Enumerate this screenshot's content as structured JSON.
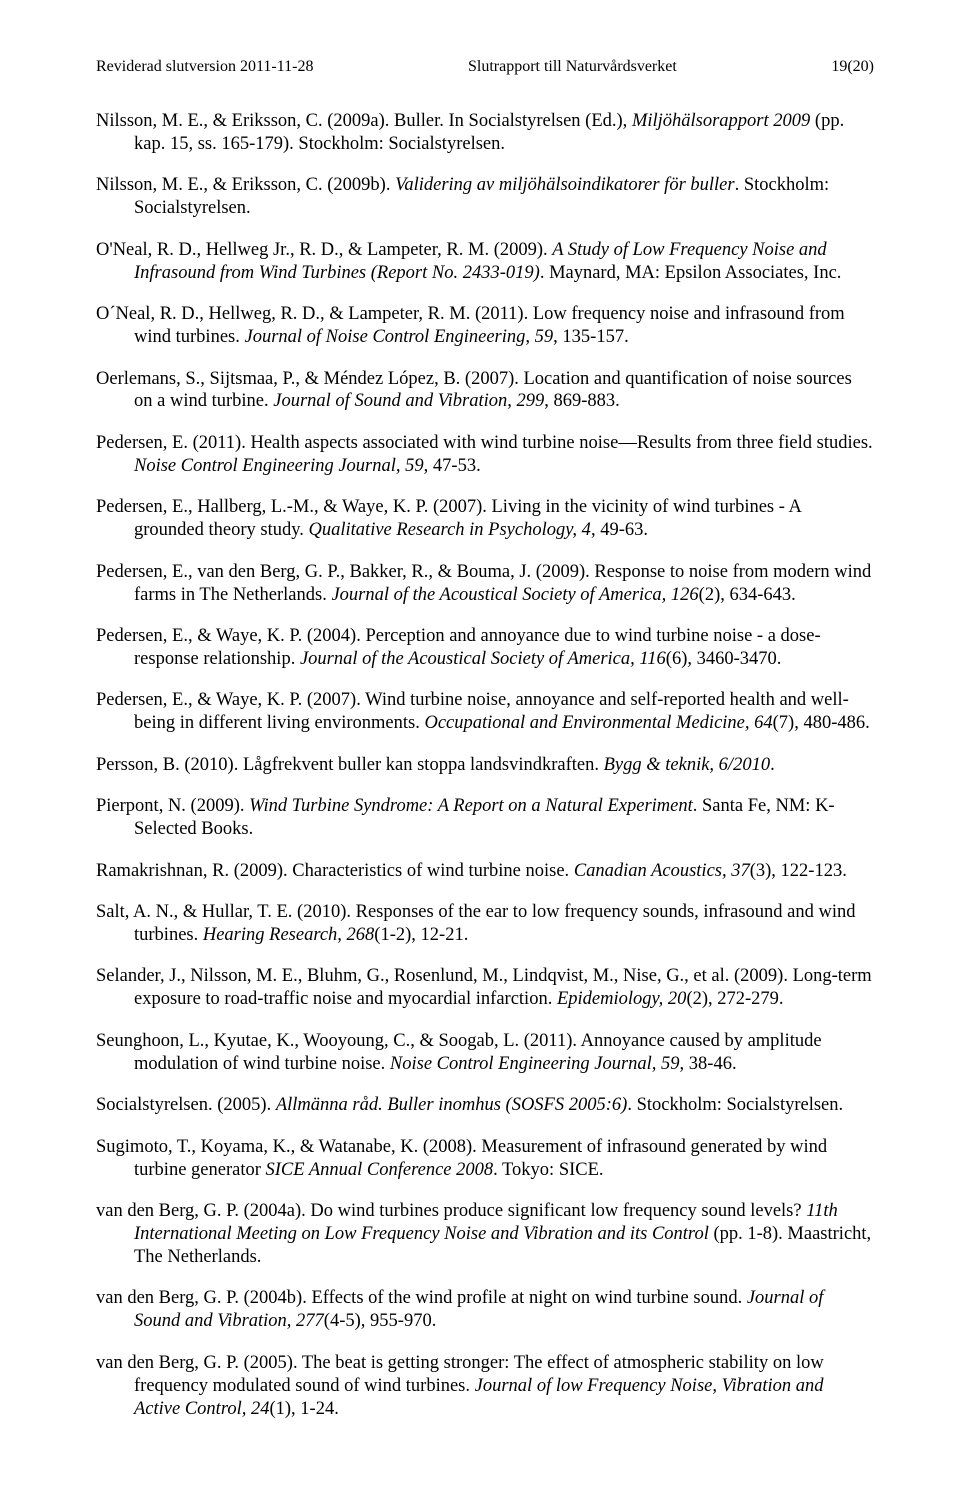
{
  "header": {
    "left": "Reviderad slutversion 2011-11-28",
    "center": "Slutrapport till Naturvårdsverket",
    "right": "19(20)"
  },
  "refs": [
    [
      {
        "t": "Nilsson, M. E., & Eriksson, C. (2009a). Buller. In Socialstyrelsen (Ed.), "
      },
      {
        "t": "Miljöhälsorapport 2009",
        "i": true
      },
      {
        "t": " (pp. kap. 15, ss. 165-179). Stockholm: Socialstyrelsen."
      }
    ],
    [
      {
        "t": "Nilsson, M. E., & Eriksson, C. (2009b). "
      },
      {
        "t": "Validering av miljöhälsoindikatorer för buller",
        "i": true
      },
      {
        "t": ". Stockholm: Socialstyrelsen."
      }
    ],
    [
      {
        "t": "O'Neal, R. D., Hellweg Jr., R. D., & Lampeter, R. M. (2009). "
      },
      {
        "t": "A Study of Low Frequency Noise and Infrasound from Wind Turbines (Report No. 2433-019)",
        "i": true
      },
      {
        "t": ". Maynard, MA: Epsilon Associates, Inc."
      }
    ],
    [
      {
        "t": "O´Neal, R. D., Hellweg, R. D., & Lampeter, R. M. (2011). Low frequency noise and infrasound from wind turbines. "
      },
      {
        "t": "Journal of Noise Control Engineering, 59",
        "i": true
      },
      {
        "t": ", 135-157."
      }
    ],
    [
      {
        "t": "Oerlemans, S., Sijtsmaa, P., & Méndez López, B. (2007). Location and quantification of noise sources on a wind turbine. "
      },
      {
        "t": "Journal of Sound and Vibration, 299",
        "i": true
      },
      {
        "t": ", 869-883."
      }
    ],
    [
      {
        "t": "Pedersen, E. (2011). Health aspects associated with wind turbine noise—Results from three field studies. "
      },
      {
        "t": "Noise Control Engineering Journal, 59",
        "i": true
      },
      {
        "t": ", 47-53."
      }
    ],
    [
      {
        "t": "Pedersen, E., Hallberg, L.-M., & Waye, K. P. (2007). Living in the vicinity of wind turbines - A grounded theory study. "
      },
      {
        "t": "Qualitative Research in Psychology, 4",
        "i": true
      },
      {
        "t": ", 49-63."
      }
    ],
    [
      {
        "t": "Pedersen, E., van den Berg, G. P., Bakker, R., & Bouma, J. (2009). Response to noise from modern wind farms in The Netherlands. "
      },
      {
        "t": "Journal of the Acoustical Society of America, 126",
        "i": true
      },
      {
        "t": "(2), 634-643."
      }
    ],
    [
      {
        "t": "Pedersen, E., & Waye, K. P. (2004). Perception and annoyance due to wind turbine noise - a dose-response relationship. "
      },
      {
        "t": "Journal of the Acoustical Society of America, 116",
        "i": true
      },
      {
        "t": "(6), 3460-3470."
      }
    ],
    [
      {
        "t": "Pedersen, E., & Waye, K. P. (2007). Wind turbine noise, annoyance and self-reported health and well-being in different living environments. "
      },
      {
        "t": "Occupational and Environmental Medicine, 64",
        "i": true
      },
      {
        "t": "(7), 480-486."
      }
    ],
    [
      {
        "t": "Persson, B. (2010). Lågfrekvent buller kan stoppa landsvindkraften. "
      },
      {
        "t": "Bygg & teknik, 6/2010",
        "i": true
      },
      {
        "t": "."
      }
    ],
    [
      {
        "t": "Pierpont, N. (2009). "
      },
      {
        "t": "Wind Turbine Syndrome: A Report on a Natural Experiment",
        "i": true
      },
      {
        "t": ". Santa Fe, NM: K-Selected Books."
      }
    ],
    [
      {
        "t": "Ramakrishnan, R. (2009). Characteristics of wind turbine noise. "
      },
      {
        "t": "Canadian Acoustics, 37",
        "i": true
      },
      {
        "t": "(3), 122-123."
      }
    ],
    [
      {
        "t": "Salt, A. N., & Hullar, T. E. (2010). Responses of the ear to low frequency sounds, infrasound and wind turbines. "
      },
      {
        "t": "Hearing Research, 268",
        "i": true
      },
      {
        "t": "(1-2), 12-21."
      }
    ],
    [
      {
        "t": "Selander, J., Nilsson, M. E., Bluhm, G., Rosenlund, M., Lindqvist, M., Nise, G., et al. (2009). Long-term exposure to road-traffic noise and myocardial infarction. "
      },
      {
        "t": "Epidemiology, 20",
        "i": true
      },
      {
        "t": "(2), 272-279."
      }
    ],
    [
      {
        "t": "Seunghoon, L., Kyutae, K., Wooyoung, C., & Soogab, L. (2011). Annoyance caused by amplitude modulation of wind turbine noise. "
      },
      {
        "t": "Noise Control Engineering Journal, 59",
        "i": true
      },
      {
        "t": ", 38-46."
      }
    ],
    [
      {
        "t": "Socialstyrelsen. (2005). "
      },
      {
        "t": "Allmänna råd. Buller inomhus (SOSFS 2005:6)",
        "i": true
      },
      {
        "t": ". Stockholm: Socialstyrelsen."
      }
    ],
    [
      {
        "t": "Sugimoto, T., Koyama, K., & Watanabe, K. (2008). Measurement of infrasound generated by wind turbine generator "
      },
      {
        "t": "SICE Annual Conference 2008",
        "i": true
      },
      {
        "t": ". Tokyo: SICE."
      }
    ],
    [
      {
        "t": "van den Berg, G. P. (2004a). Do wind turbines produce significant low frequency sound levels? "
      },
      {
        "t": "11th International Meeting on Low Frequency Noise and Vibration and its Control",
        "i": true
      },
      {
        "t": " (pp. 1-8). Maastricht, The Netherlands."
      }
    ],
    [
      {
        "t": "van den Berg, G. P. (2004b). Effects of the wind profile at night on wind turbine sound. "
      },
      {
        "t": "Journal of Sound and Vibration, 277",
        "i": true
      },
      {
        "t": "(4-5), 955-970."
      }
    ],
    [
      {
        "t": "van den Berg, G. P. (2005). The beat is getting stronger: The effect of atmospheric stability on low frequency modulated sound of wind turbines. "
      },
      {
        "t": "Journal of low Frequency Noise, Vibration and Active Control, 24",
        "i": true
      },
      {
        "t": "(1), 1-24."
      }
    ]
  ]
}
